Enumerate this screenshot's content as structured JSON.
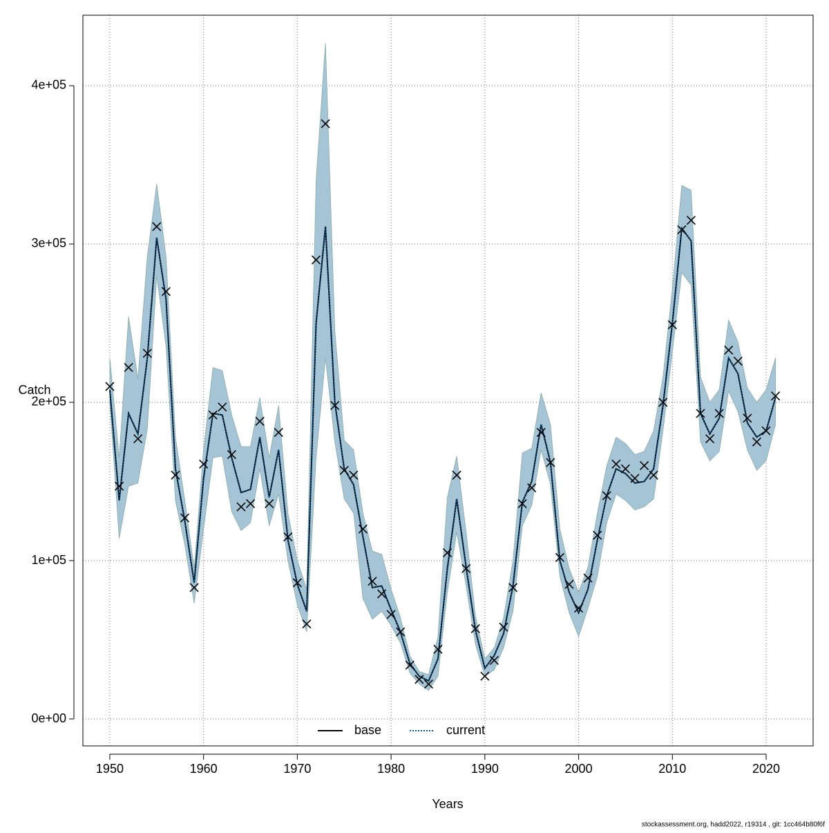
{
  "chart_data": {
    "type": "line",
    "xlabel": "Years",
    "ylabel": "Catch",
    "footnote": "stockassessment.org, hadd2022, r19314 , git: 1cc464b80f6f",
    "x": [
      1950,
      1951,
      1952,
      1953,
      1954,
      1955,
      1956,
      1957,
      1958,
      1959,
      1960,
      1961,
      1962,
      1963,
      1964,
      1965,
      1966,
      1967,
      1968,
      1969,
      1970,
      1971,
      1972,
      1973,
      1974,
      1975,
      1976,
      1977,
      1978,
      1979,
      1980,
      1981,
      1982,
      1983,
      1984,
      1985,
      1986,
      1987,
      1988,
      1989,
      1990,
      1991,
      1992,
      1993,
      1994,
      1995,
      1996,
      1997,
      1998,
      1999,
      2000,
      2001,
      2002,
      2003,
      2004,
      2005,
      2006,
      2007,
      2008,
      2009,
      2010,
      2011,
      2012,
      2013,
      2014,
      2015,
      2016,
      2017,
      2018,
      2019,
      2020,
      2021
    ],
    "series": [
      {
        "name": "base",
        "color": "#000000",
        "dash": false,
        "values": [
          208000,
          138000,
          193000,
          180000,
          228000,
          304000,
          265000,
          158000,
          125000,
          86000,
          152000,
          193000,
          192000,
          165000,
          143000,
          145000,
          178000,
          140000,
          170000,
          113000,
          85000,
          68000,
          250000,
          311000,
          200000,
          158000,
          148000,
          115000,
          83000,
          84000,
          69000,
          55000,
          35000,
          27000,
          24000,
          38000,
          95000,
          139000,
          96000,
          56000,
          32000,
          40000,
          54000,
          84000,
          137000,
          150000,
          186000,
          162000,
          100000,
          80000,
          67000,
          82000,
          113000,
          141000,
          158000,
          155000,
          149000,
          150000,
          158000,
          198000,
          250000,
          310000,
          302000,
          193000,
          180000,
          190000,
          228000,
          218000,
          187000,
          178000,
          182000,
          203000
        ]
      },
      {
        "name": "current",
        "color": "#00508a",
        "dash": true,
        "values": [
          208000,
          138000,
          193000,
          180000,
          228000,
          304000,
          265000,
          158000,
          125000,
          86000,
          152000,
          193000,
          192000,
          165000,
          143000,
          145000,
          178000,
          140000,
          170000,
          113000,
          85000,
          68000,
          250000,
          311000,
          200000,
          158000,
          148000,
          115000,
          83000,
          84000,
          69000,
          55000,
          35000,
          27000,
          24000,
          38000,
          95000,
          139000,
          96000,
          56000,
          32000,
          40000,
          54000,
          84000,
          137000,
          150000,
          186000,
          162000,
          100000,
          80000,
          67000,
          82000,
          113000,
          141000,
          158000,
          155000,
          149000,
          150000,
          158000,
          198000,
          250000,
          310000,
          302000,
          193000,
          180000,
          190000,
          228000,
          218000,
          187000,
          178000,
          182000,
          203000
        ]
      }
    ],
    "band": {
      "color": "#a5c5d6",
      "upper": [
        228000,
        165000,
        254000,
        215000,
        292000,
        338000,
        292000,
        178000,
        138000,
        95000,
        170000,
        222000,
        220000,
        192000,
        172000,
        172000,
        203000,
        165000,
        198000,
        130000,
        100000,
        82000,
        340000,
        427000,
        245000,
        176000,
        170000,
        130000,
        106000,
        104000,
        82000,
        64000,
        40000,
        30000,
        28000,
        52000,
        140000,
        166000,
        118000,
        65000,
        38000,
        45000,
        64000,
        100000,
        168000,
        171000,
        206000,
        186000,
        120000,
        95000,
        80000,
        96000,
        130000,
        160000,
        178000,
        174000,
        167000,
        169000,
        182000,
        216000,
        272000,
        337000,
        334000,
        216000,
        200000,
        208000,
        252000,
        238000,
        209000,
        200000,
        208000,
        228000
      ],
      "lower": [
        200000,
        114000,
        147000,
        149000,
        183000,
        280000,
        235000,
        138000,
        110000,
        73000,
        120000,
        165000,
        166000,
        131000,
        119000,
        124000,
        158000,
        122000,
        142000,
        100000,
        72000,
        55000,
        165000,
        228000,
        175000,
        139000,
        130000,
        76000,
        63000,
        68000,
        59000,
        48000,
        29000,
        22000,
        18000,
        27000,
        80000,
        118000,
        84000,
        47000,
        27000,
        31000,
        45000,
        68000,
        122000,
        135000,
        170000,
        148000,
        90000,
        67000,
        52000,
        70000,
        90000,
        124000,
        142000,
        138000,
        132000,
        134000,
        139000,
        182000,
        232000,
        282000,
        274000,
        175000,
        163000,
        169000,
        207000,
        194000,
        170000,
        157000,
        163000,
        186000
      ]
    },
    "observations": {
      "color": "#000000",
      "values": [
        210000,
        147000,
        222000,
        177000,
        231000,
        311000,
        270000,
        154000,
        127000,
        83000,
        161000,
        192000,
        197000,
        167000,
        134000,
        136000,
        188000,
        136000,
        181000,
        115000,
        86000,
        60000,
        290000,
        376000,
        198000,
        157000,
        154000,
        120000,
        87000,
        79000,
        66000,
        55000,
        34000,
        25000,
        22000,
        44000,
        105000,
        154000,
        95000,
        57000,
        27000,
        37000,
        58000,
        83000,
        136000,
        146000,
        181000,
        162000,
        102000,
        85000,
        70000,
        89000,
        116000,
        141000,
        161000,
        158000,
        152000,
        160000,
        154000,
        200000,
        249000,
        309000,
        315000,
        193000,
        177000,
        193000,
        233000,
        226000,
        190000,
        175000,
        182000,
        204000
      ]
    },
    "xlim": [
      1947.13,
      2025.01
    ],
    "ylim": [
      -17030,
      444540
    ],
    "xticks": [
      1950,
      1960,
      1970,
      1980,
      1990,
      2000,
      2010,
      2020
    ],
    "yticks": [
      {
        "value": 0,
        "label": "0e+00"
      },
      {
        "value": 100000,
        "label": "1e+05"
      },
      {
        "value": 200000,
        "label": "2e+05"
      },
      {
        "value": 300000,
        "label": "3e+05"
      },
      {
        "value": 400000,
        "label": "4e+05"
      }
    ],
    "grid": true,
    "legend": "bottom"
  }
}
